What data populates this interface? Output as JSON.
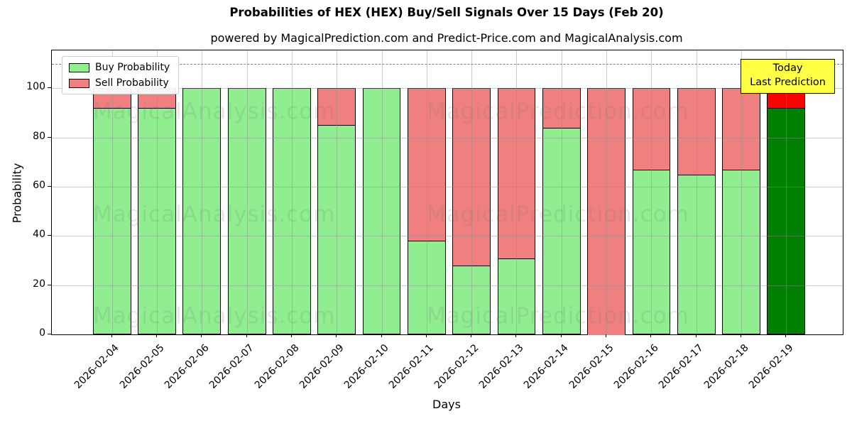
{
  "figure": {
    "title": "Probabilities of HEX (HEX) Buy/Sell Signals Over 15 Days (Feb 20)",
    "subtitle": "powered by MagicalPrediction.com and Predict-Price.com and MagicalAnalysis.com"
  },
  "chart_data": {
    "type": "bar",
    "stacked": true,
    "title": "Probabilities of HEX (HEX) Buy/Sell Signals Over 15 Days (Feb 20)",
    "xlabel": "Days",
    "ylabel": "Probability",
    "categories": [
      "2026-02-04",
      "2026-02-05",
      "2026-02-06",
      "2026-02-07",
      "2026-02-08",
      "2026-02-09",
      "2026-02-10",
      "2026-02-11",
      "2026-02-12",
      "2026-02-13",
      "2026-02-14",
      "2026-02-15",
      "2026-02-16",
      "2026-02-17",
      "2026-02-18",
      "2026-02-19"
    ],
    "series": [
      {
        "name": "Buy Probability",
        "color": "#90EE90",
        "values": [
          92,
          92,
          100,
          100,
          100,
          85,
          100,
          38,
          28,
          31,
          84,
          0,
          67,
          65,
          67,
          92
        ]
      },
      {
        "name": "Sell Probability",
        "color": "#F08080",
        "values": [
          8,
          8,
          0,
          0,
          0,
          15,
          0,
          62,
          72,
          69,
          16,
          100,
          33,
          35,
          33,
          8
        ]
      }
    ],
    "highlight": {
      "index": 15,
      "buy_color": "#008000",
      "sell_color": "#FF0000"
    },
    "ylim": [
      0,
      115.4
    ],
    "yticks": [
      0,
      20,
      40,
      60,
      80,
      100
    ],
    "grid": true,
    "dashed_line_y": 110,
    "legend_position": "upper-left",
    "bar_edge_color": "#000000"
  },
  "annotation": {
    "lines": [
      "Today",
      "Last Prediction"
    ],
    "bg_color": "#FFFF45"
  },
  "watermarks": {
    "left_text": "MagicalAnalysis.com",
    "right_text": "MagicalPrediction.com"
  }
}
